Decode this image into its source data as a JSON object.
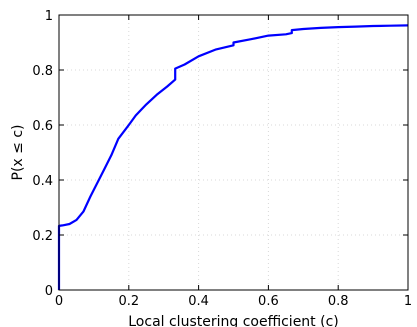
{
  "chart_data": {
    "type": "line",
    "title": "",
    "xlabel": "Local clustering coefficient (c)",
    "ylabel": "P(x ≤ c)",
    "xlim": [
      0,
      1
    ],
    "ylim": [
      0,
      1
    ],
    "grid": true,
    "legend": "none",
    "xticks": [
      0,
      0.2,
      0.4,
      0.6,
      0.8,
      1
    ],
    "yticks": [
      0,
      0.2,
      0.4,
      0.6,
      0.8,
      1
    ],
    "xtick_labels": [
      "0",
      "0.2",
      "0.4",
      "0.6",
      "0.8",
      "1"
    ],
    "ytick_labels": [
      "0",
      "0.2",
      "0.4",
      "0.6",
      "0.8",
      "1"
    ],
    "series": [
      {
        "color": "#0000ff",
        "x": [
          0,
          0,
          0.01,
          0.03,
          0.05,
          0.07,
          0.09,
          0.11,
          0.13,
          0.15,
          0.17,
          0.2,
          0.22,
          0.25,
          0.28,
          0.31,
          0.333,
          0.333,
          0.36,
          0.4,
          0.45,
          0.5,
          0.5,
          0.55,
          0.6,
          0.65,
          0.667,
          0.667,
          0.7,
          0.75,
          0.8,
          0.85,
          0.9,
          0.95,
          1.0
        ],
        "y": [
          0,
          0.233,
          0.235,
          0.24,
          0.255,
          0.285,
          0.34,
          0.39,
          0.44,
          0.49,
          0.55,
          0.6,
          0.635,
          0.675,
          0.71,
          0.74,
          0.765,
          0.805,
          0.82,
          0.85,
          0.875,
          0.89,
          0.9,
          0.912,
          0.925,
          0.93,
          0.934,
          0.945,
          0.949,
          0.953,
          0.956,
          0.958,
          0.96,
          0.961,
          0.962
        ]
      }
    ]
  }
}
